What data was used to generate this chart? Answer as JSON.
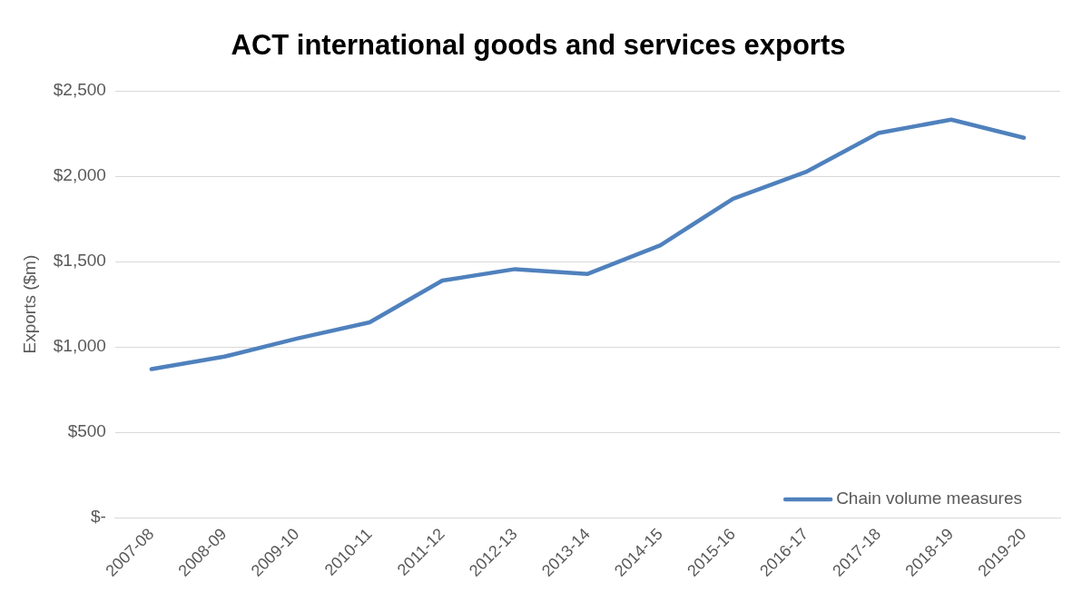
{
  "chart_data": {
    "type": "line",
    "title": "ACT international goods and services exports",
    "ylabel": "Exports ($m)",
    "categories": [
      "2007-08",
      "2008-09",
      "2009-10",
      "2010-11",
      "2011-12",
      "2012-13",
      "2013-14",
      "2014-15",
      "2015-16",
      "2016-17",
      "2017-18",
      "2018-19",
      "2019-20"
    ],
    "series": [
      {
        "name": "Chain volume measures",
        "color": "#4f81bd",
        "values": [
          870,
          943,
          1049,
          1144,
          1389,
          1456,
          1428,
          1596,
          1869,
          2025,
          2254,
          2332,
          2226
        ]
      }
    ],
    "ylim": [
      0,
      2500
    ],
    "yticks": [
      {
        "value": 0,
        "label": "$-"
      },
      {
        "value": 500,
        "label": "$500"
      },
      {
        "value": 1000,
        "label": "$1,000"
      },
      {
        "value": 1500,
        "label": "$1,500"
      },
      {
        "value": 2000,
        "label": "$2,000"
      },
      {
        "value": 2500,
        "label": "$2,500"
      }
    ],
    "grid": "y",
    "legend": "bottom right",
    "marker": "none",
    "line_style": "solid"
  }
}
